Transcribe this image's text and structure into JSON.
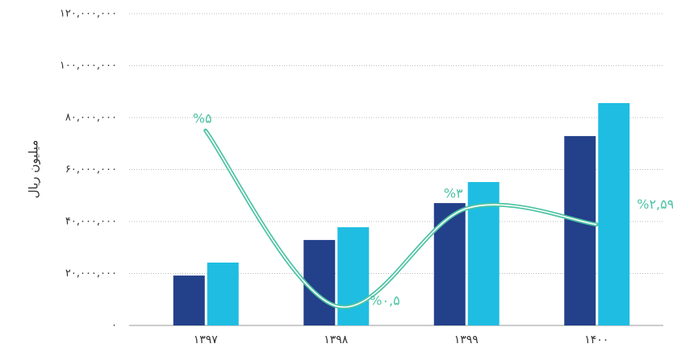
{
  "chart_data": {
    "type": "bar",
    "y_label": "میلیون ریال",
    "categories": [
      "۱۳۹۷",
      "۱۳۹۸",
      "۱۳۹۹",
      "۱۴۰۰"
    ],
    "series": [
      {
        "color": "#23408a",
        "values": [
          19200000,
          32900000,
          47100000,
          72900000
        ]
      },
      {
        "color": "#1fbde2",
        "values": [
          24200000,
          37800000,
          55200000,
          85600000
        ]
      },
      {
        "type": "line",
        "axis": "y2",
        "color": "#4cc3a3",
        "values": [
          5,
          0.5,
          3,
          2.59
        ],
        "value_labels": [
          "%۵",
          "%۰,۵",
          "%۳",
          "%۲,۵۹"
        ]
      }
    ],
    "ylim": [
      0,
      120000000
    ],
    "yticks": [
      {
        "value": 0,
        "label": "۰"
      },
      {
        "value": 20000000,
        "label": "۲۰,۰۰۰,۰۰۰"
      },
      {
        "value": 40000000,
        "label": "۴۰,۰۰۰,۰۰۰"
      },
      {
        "value": 60000000,
        "label": "۶۰,۰۰۰,۰۰۰"
      },
      {
        "value": 80000000,
        "label": "۸۰,۰۰۰,۰۰۰"
      },
      {
        "value": 100000000,
        "label": "۱۰۰,۰۰۰,۰۰۰"
      },
      {
        "value": 120000000,
        "label": "۱۲۰,۰۰۰,۰۰۰"
      }
    ],
    "y2lim": [
      0,
      8
    ],
    "grid": true
  }
}
